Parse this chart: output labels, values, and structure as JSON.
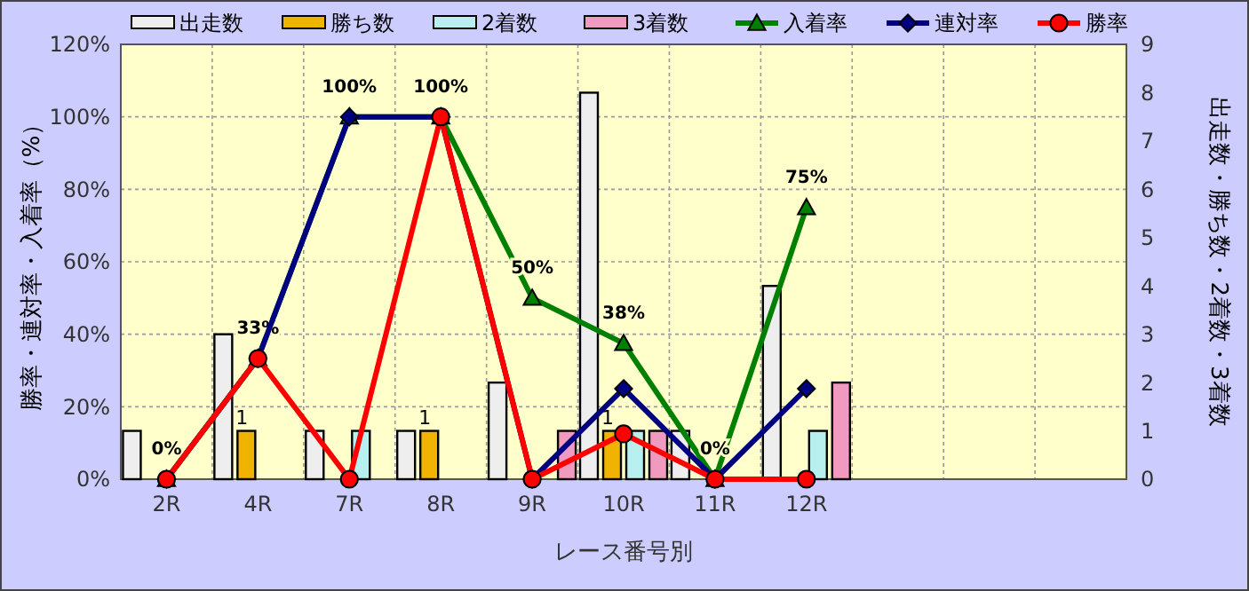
{
  "chart_data": {
    "type": "bar",
    "xlabel": "レース番号別",
    "ylabel": "勝率・連対率・入着率（%）",
    "y2label": "出走数・勝ち数・2着数・3着数",
    "categories": [
      "2R",
      "4R",
      "7R",
      "8R",
      "9R",
      "10R",
      "11R",
      "12R",
      null,
      null,
      null
    ],
    "ylim": [
      0,
      120
    ],
    "yticks": [
      {
        "value": 0,
        "label": "0%"
      },
      {
        "value": 20,
        "label": "20%"
      },
      {
        "value": 40,
        "label": "40%"
      },
      {
        "value": 60,
        "label": "60%"
      },
      {
        "value": 80,
        "label": "80%"
      },
      {
        "value": 100,
        "label": "100%"
      },
      {
        "value": 120,
        "label": "120%"
      }
    ],
    "y2lim": [
      0,
      9
    ],
    "y2ticks": [
      0,
      1,
      2,
      3,
      4,
      5,
      6,
      7,
      8,
      9
    ],
    "grid": true,
    "legend": "top",
    "series": [
      {
        "name": "出走数",
        "axis": "y2",
        "color": "#eeeeee",
        "values": [
          1,
          3,
          1,
          1,
          2,
          8,
          1,
          4,
          null,
          null,
          null
        ]
      },
      {
        "name": "勝ち数",
        "axis": "y2",
        "color": "#f0b400",
        "values": [
          0,
          1,
          0,
          1,
          0,
          1,
          0,
          0,
          null,
          null,
          null
        ],
        "value_labels": [
          null,
          "1",
          null,
          "1",
          null,
          "1",
          null,
          null,
          null,
          null,
          null
        ]
      },
      {
        "name": "2着数",
        "axis": "y2",
        "color": "#b8f0f0",
        "values": [
          0,
          0,
          1,
          0,
          0,
          1,
          0,
          1,
          null,
          null,
          null
        ]
      },
      {
        "name": "3着数",
        "axis": "y2",
        "color": "#f09ac0",
        "values": [
          0,
          0,
          0,
          0,
          1,
          1,
          0,
          2,
          null,
          null,
          null
        ]
      },
      {
        "name": "入着率",
        "type": "line",
        "color": "#008000",
        "marker": "triangle",
        "values": [
          0,
          33.3,
          100,
          100,
          50,
          37.5,
          0,
          75,
          null,
          null,
          null
        ],
        "value_labels": [
          "0%",
          "33%",
          "100%",
          "100%",
          "50%",
          "38%",
          "0%",
          "75%",
          null,
          null,
          null
        ]
      },
      {
        "name": "連対率",
        "type": "line",
        "color": "#000080",
        "marker": "diamond",
        "values": [
          0,
          33.3,
          100,
          100,
          0,
          25,
          0,
          25,
          null,
          null,
          null
        ]
      },
      {
        "name": "勝率",
        "type": "line",
        "color": "#ff0000",
        "marker": "circle",
        "values": [
          0,
          33.3,
          0,
          100,
          0,
          12.5,
          0,
          0,
          null,
          null,
          null
        ]
      }
    ]
  }
}
